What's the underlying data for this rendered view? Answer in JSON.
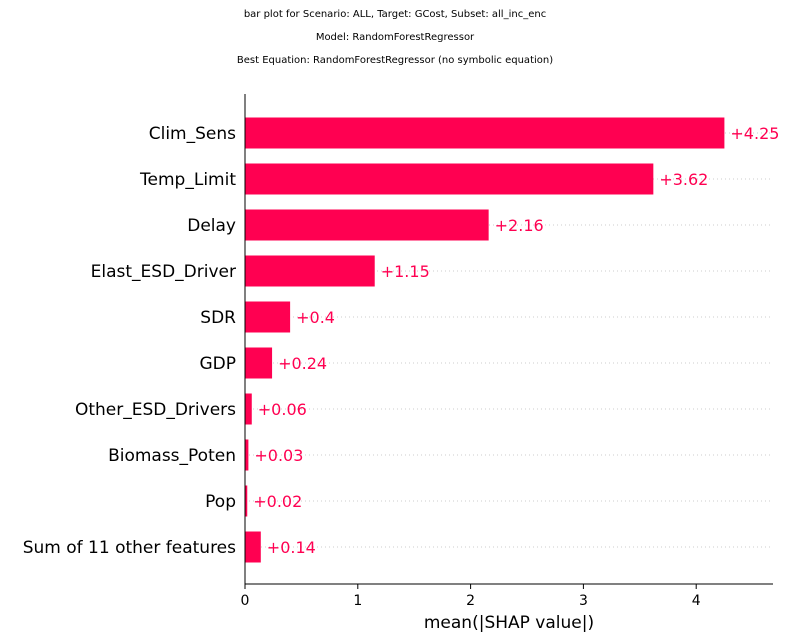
{
  "title_lines": [
    "bar plot for Scenario: ALL, Target: GCost, Subset: all_inc_enc",
    "Model: RandomForestRegressor",
    "Best Equation: RandomForestRegressor (no symbolic equation)"
  ],
  "chart_data": {
    "type": "bar",
    "orientation": "horizontal",
    "categories": [
      "Clim_Sens",
      "Temp_Limit",
      "Delay",
      "Elast_ESD_Driver",
      "SDR",
      "GDP",
      "Other_ESD_Drivers",
      "Biomass_Poten",
      "Pop",
      "Sum of 11 other features"
    ],
    "values": [
      4.25,
      3.62,
      2.16,
      1.15,
      0.4,
      0.24,
      0.06,
      0.03,
      0.02,
      0.14
    ],
    "value_labels": [
      "+4.25",
      "+3.62",
      "+2.16",
      "+1.15",
      "+0.4",
      "+0.24",
      "+0.06",
      "+0.03",
      "+0.02",
      "+0.14"
    ],
    "xlabel": "mean(|SHAP value|)",
    "ylabel": "",
    "xlim": [
      0,
      4.68
    ],
    "xticks": [
      0,
      1,
      2,
      3,
      4
    ],
    "xtick_labels": [
      "0",
      "1",
      "2",
      "3",
      "4"
    ],
    "bar_color": "#ff0051",
    "grid": "dotted horizontal guide lines per row",
    "legend": "none"
  }
}
